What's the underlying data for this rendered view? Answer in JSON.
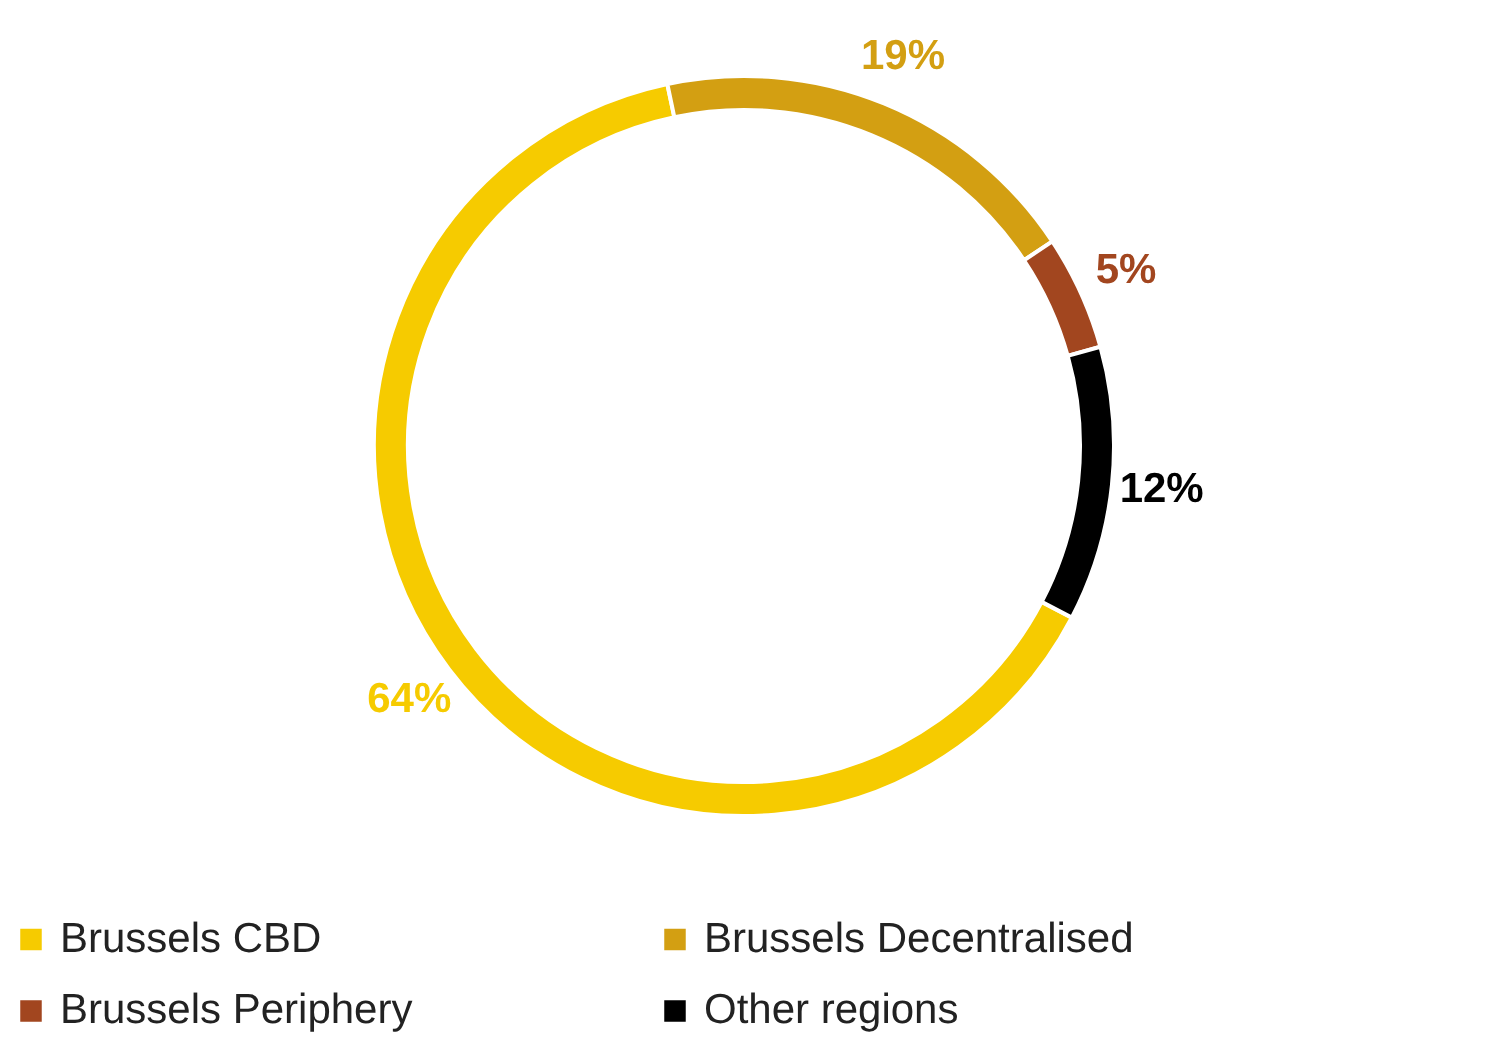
{
  "chart_data": {
    "type": "donut",
    "categories": [
      "Brussels CBD",
      "Brussels Decentralised",
      "Brussels Periphery",
      "Other regions"
    ],
    "values": [
      64,
      19,
      5,
      12
    ],
    "value_labels": [
      "64%",
      "19%",
      "5%",
      "12%"
    ],
    "colors": [
      "#f6cb00",
      "#d39f12",
      "#a2461f",
      "#000000"
    ],
    "legend": "bottom"
  }
}
